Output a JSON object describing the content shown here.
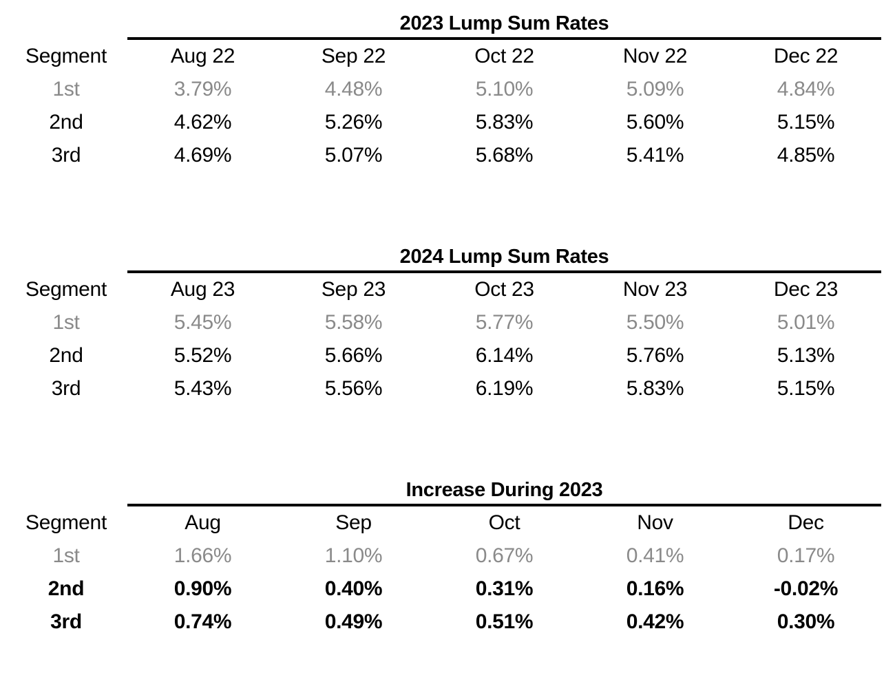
{
  "page": {
    "background": "#ffffff"
  },
  "colors": {
    "text": "#000000",
    "muted_row": "#8a8a8a",
    "rule": "#000000"
  },
  "tables": [
    {
      "title": "2023 Lump Sum Rates",
      "segment_header": "Segment",
      "columns": [
        "Aug 22",
        "Sep 22",
        "Oct 22",
        "Nov 22",
        "Dec 22"
      ],
      "rows": [
        {
          "label": "1st",
          "muted": true,
          "bold": false,
          "values": [
            "3.79%",
            "4.48%",
            "5.10%",
            "5.09%",
            "4.84%"
          ]
        },
        {
          "label": "2nd",
          "muted": false,
          "bold": false,
          "values": [
            "4.62%",
            "5.26%",
            "5.83%",
            "5.60%",
            "5.15%"
          ]
        },
        {
          "label": "3rd",
          "muted": false,
          "bold": false,
          "values": [
            "4.69%",
            "5.07%",
            "5.68%",
            "5.41%",
            "4.85%"
          ]
        }
      ]
    },
    {
      "title": "2024 Lump Sum Rates",
      "segment_header": "Segment",
      "columns": [
        "Aug 23",
        "Sep 23",
        "Oct 23",
        "Nov 23",
        "Dec 23"
      ],
      "rows": [
        {
          "label": "1st",
          "muted": true,
          "bold": false,
          "values": [
            "5.45%",
            "5.58%",
            "5.77%",
            "5.50%",
            "5.01%"
          ]
        },
        {
          "label": "2nd",
          "muted": false,
          "bold": false,
          "values": [
            "5.52%",
            "5.66%",
            "6.14%",
            "5.76%",
            "5.13%"
          ]
        },
        {
          "label": "3rd",
          "muted": false,
          "bold": false,
          "values": [
            "5.43%",
            "5.56%",
            "6.19%",
            "5.83%",
            "5.15%"
          ]
        }
      ]
    },
    {
      "title": "Increase During 2023",
      "segment_header": "Segment",
      "columns": [
        "Aug",
        "Sep",
        "Oct",
        "Nov",
        "Dec"
      ],
      "rows": [
        {
          "label": "1st",
          "muted": true,
          "bold": false,
          "values": [
            "1.66%",
            "1.10%",
            "0.67%",
            "0.41%",
            "0.17%"
          ]
        },
        {
          "label": "2nd",
          "muted": false,
          "bold": true,
          "values": [
            "0.90%",
            "0.40%",
            "0.31%",
            "0.16%",
            "-0.02%"
          ]
        },
        {
          "label": "3rd",
          "muted": false,
          "bold": true,
          "values": [
            "0.74%",
            "0.49%",
            "0.51%",
            "0.42%",
            "0.30%"
          ]
        }
      ]
    }
  ]
}
